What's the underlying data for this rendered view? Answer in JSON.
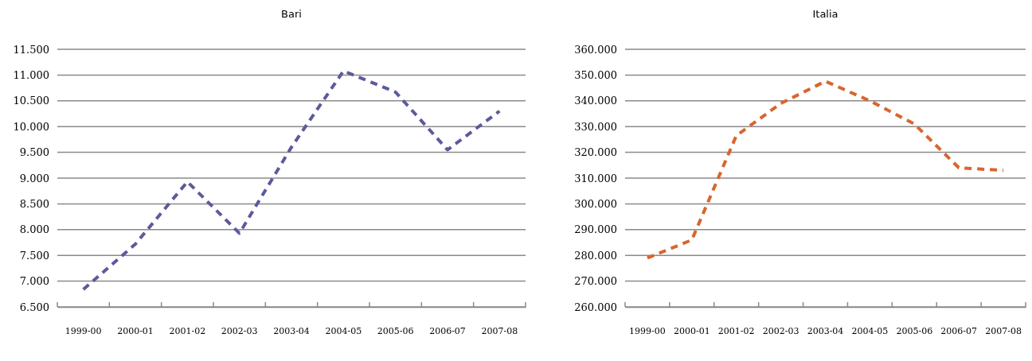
{
  "chart_data": [
    {
      "type": "line",
      "title": "Bari",
      "categories": [
        "1999-00",
        "2000-01",
        "2001-02",
        "2002-03",
        "2003-04",
        "2004-05",
        "2005-06",
        "2006-07",
        "2007-08"
      ],
      "series": [
        {
          "color": "#5c5a9c",
          "values": [
            6840,
            7720,
            8930,
            7930,
            9600,
            11080,
            10670,
            9550,
            10300
          ]
        }
      ],
      "ylim": [
        6500,
        11500
      ],
      "yticks": [
        {
          "value": 6500,
          "label": "6.500"
        },
        {
          "value": 7000,
          "label": "7.000"
        },
        {
          "value": 7500,
          "label": "7.500"
        },
        {
          "value": 8000,
          "label": "8.000"
        },
        {
          "value": 8500,
          "label": "8.500"
        },
        {
          "value": 9000,
          "label": "9.000"
        },
        {
          "value": 9500,
          "label": "9.500"
        },
        {
          "value": 10000,
          "label": "10.000"
        },
        {
          "value": 10500,
          "label": "10.500"
        },
        {
          "value": 11000,
          "label": "11.000"
        },
        {
          "value": 11500,
          "label": "11.500"
        }
      ],
      "grid": "y",
      "line_style": "dashed",
      "marker": "none"
    },
    {
      "type": "line",
      "title": "Italia",
      "categories": [
        "1999-00",
        "2000-01",
        "2001-02",
        "2002-03",
        "2003-04",
        "2004-05",
        "2005-06",
        "2006-07",
        "2007-08"
      ],
      "series": [
        {
          "color": "#d8652f",
          "values": [
            279000,
            286000,
            326500,
            339000,
            347600,
            340000,
            331000,
            314000,
            313000
          ]
        }
      ],
      "ylim": [
        260000,
        360000
      ],
      "yticks": [
        {
          "value": 260000,
          "label": "260.000"
        },
        {
          "value": 270000,
          "label": "270.000"
        },
        {
          "value": 280000,
          "label": "280.000"
        },
        {
          "value": 290000,
          "label": "290.000"
        },
        {
          "value": 300000,
          "label": "300.000"
        },
        {
          "value": 310000,
          "label": "310.000"
        },
        {
          "value": 320000,
          "label": "320.000"
        },
        {
          "value": 330000,
          "label": "330.000"
        },
        {
          "value": 340000,
          "label": "340.000"
        },
        {
          "value": 350000,
          "label": "350.000"
        },
        {
          "value": 360000,
          "label": "360.000"
        }
      ],
      "grid": "y",
      "line_style": "dashed",
      "marker": "none"
    }
  ]
}
